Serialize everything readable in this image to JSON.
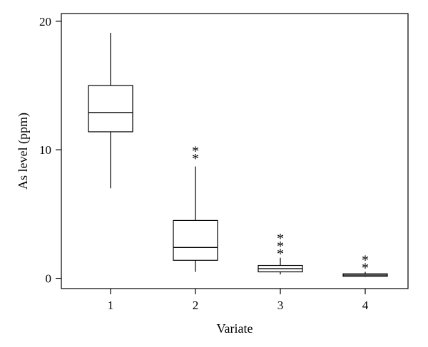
{
  "chart_data": {
    "type": "boxplot",
    "xlabel": "Variate",
    "ylabel": "As level (ppm)",
    "categories": [
      "1",
      "2",
      "3",
      "4"
    ],
    "y_ticks": [
      "0",
      "10",
      "20"
    ],
    "ylim": [
      -0.8,
      20.6
    ],
    "grid": false,
    "legend": "none",
    "outlier_marker": "*",
    "boxes": [
      {
        "category": "1",
        "whisker_low": 7.0,
        "q1": 11.4,
        "median": 12.9,
        "q3": 15.0,
        "whisker_high": 19.1,
        "outliers": []
      },
      {
        "category": "2",
        "whisker_low": 0.5,
        "q1": 1.4,
        "median": 2.4,
        "q3": 4.5,
        "whisker_high": 8.7,
        "outliers": [
          9.5,
          10.1
        ]
      },
      {
        "category": "3",
        "whisker_low": 0.3,
        "q1": 0.5,
        "median": 0.75,
        "q3": 1.0,
        "whisker_high": 1.6,
        "outliers": [
          2.1,
          2.7,
          3.3
        ]
      },
      {
        "category": "4",
        "whisker_low": 0.1,
        "q1": 0.15,
        "median": 0.25,
        "q3": 0.35,
        "whisker_high": 0.5,
        "outliers": [
          1.0,
          1.6
        ]
      }
    ]
  }
}
